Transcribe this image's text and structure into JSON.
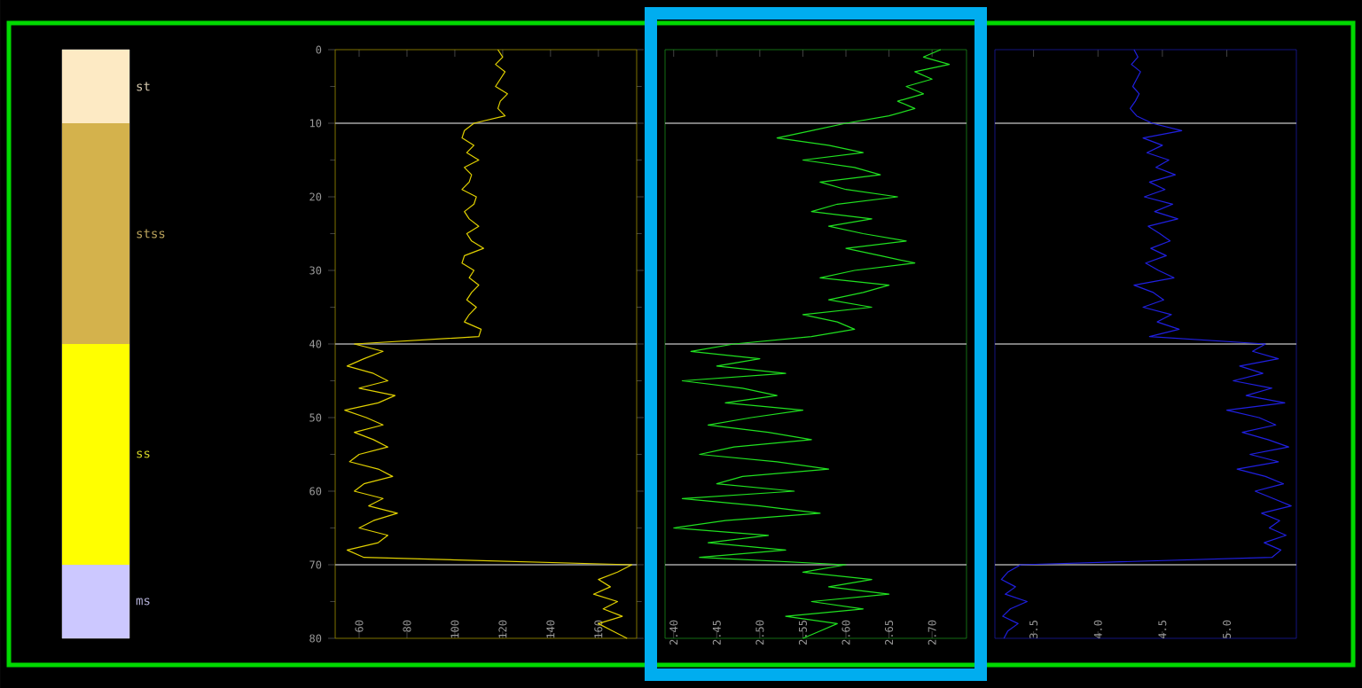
{
  "chart_data": [
    {
      "type": "bar",
      "stacked": true,
      "categories": [
        null
      ],
      "ylim": [
        80,
        0
      ],
      "tick_labels": false,
      "series": [
        {
          "name": "st",
          "color": "#fdeac4",
          "values": [
            10
          ]
        },
        {
          "name": "stss",
          "color": "#d4b24c",
          "values": [
            30
          ]
        },
        {
          "name": "ss",
          "color": "#ffff00",
          "values": [
            30
          ]
        },
        {
          "name": "ms",
          "color": "#ccc8ff",
          "values": [
            10
          ]
        }
      ]
    },
    {
      "type": "line",
      "xlim": [
        50,
        176
      ],
      "xticks": [
        60,
        80,
        100,
        120,
        140,
        160
      ],
      "ylim": [
        80,
        0
      ],
      "yticks": [
        0,
        10,
        20,
        30,
        40,
        50,
        60,
        70,
        80
      ],
      "ref_lines": [
        {
          "axis": "y",
          "value": 10
        },
        {
          "axis": "y",
          "value": 40
        },
        {
          "axis": "y",
          "value": 70
        }
      ],
      "series": [
        {
          "color": "#e0d000",
          "x": [
            118,
            120,
            117,
            121,
            119,
            117,
            122,
            119,
            118,
            121,
            108,
            104,
            103,
            108,
            105,
            110,
            104,
            107,
            106,
            103,
            109,
            108,
            104,
            106,
            110,
            105,
            107,
            112,
            104,
            103,
            108,
            106,
            110,
            107,
            105,
            109,
            106,
            104,
            111,
            110,
            58,
            70,
            62,
            55,
            66,
            72,
            60,
            75,
            68,
            54,
            63,
            70,
            58,
            66,
            72,
            60,
            56,
            68,
            74,
            62,
            58,
            70,
            64,
            76,
            66,
            60,
            72,
            68,
            55,
            62,
            174,
            168,
            160,
            165,
            158,
            168,
            162,
            170,
            160,
            166,
            172
          ],
          "values": [
            0,
            1,
            2,
            3,
            4,
            5,
            6,
            7,
            8,
            9,
            10,
            11,
            12,
            13,
            14,
            15,
            16,
            17,
            18,
            19,
            20,
            21,
            22,
            23,
            24,
            25,
            26,
            27,
            28,
            29,
            30,
            31,
            32,
            33,
            34,
            35,
            36,
            37,
            38,
            39,
            40,
            41,
            42,
            43,
            44,
            45,
            46,
            47,
            48,
            49,
            50,
            51,
            52,
            53,
            54,
            55,
            56,
            57,
            58,
            59,
            60,
            61,
            62,
            63,
            64,
            65,
            66,
            67,
            68,
            69,
            70,
            71,
            72,
            73,
            74,
            75,
            76,
            77,
            78,
            79,
            80
          ]
        }
      ]
    },
    {
      "type": "line",
      "xlim": [
        2.39,
        2.74
      ],
      "xticks": [
        {
          "value": 2.4,
          "label": "2.40"
        },
        2.45,
        {
          "value": 2.5,
          "label": "2.50"
        },
        2.55,
        {
          "value": 2.6,
          "label": "2.60"
        },
        2.65,
        {
          "value": 2.7,
          "label": "2.70"
        }
      ],
      "ylim": [
        80,
        0
      ],
      "tick_labels": "x",
      "ref_lines": [
        {
          "axis": "y",
          "value": 10
        },
        {
          "axis": "y",
          "value": 40
        },
        {
          "axis": "y",
          "value": 70
        }
      ],
      "series": [
        {
          "color": "#20e020",
          "x": [
            2.71,
            2.69,
            2.72,
            2.68,
            2.7,
            2.67,
            2.69,
            2.66,
            2.68,
            2.65,
            2.6,
            2.56,
            2.52,
            2.58,
            2.62,
            2.55,
            2.61,
            2.64,
            2.57,
            2.6,
            2.66,
            2.59,
            2.56,
            2.63,
            2.58,
            2.62,
            2.67,
            2.6,
            2.64,
            2.68,
            2.61,
            2.57,
            2.65,
            2.62,
            2.58,
            2.63,
            2.55,
            2.59,
            2.61,
            2.56,
            2.47,
            2.42,
            2.5,
            2.45,
            2.53,
            2.41,
            2.48,
            2.52,
            2.46,
            2.55,
            2.49,
            2.44,
            2.51,
            2.56,
            2.47,
            2.43,
            2.52,
            2.58,
            2.48,
            2.45,
            2.54,
            2.41,
            2.5,
            2.57,
            2.46,
            2.4,
            2.51,
            2.44,
            2.53,
            2.43,
            2.6,
            2.55,
            2.63,
            2.58,
            2.65,
            2.56,
            2.62,
            2.53,
            2.59,
            2.57,
            2.55
          ],
          "values": [
            0,
            1,
            2,
            3,
            4,
            5,
            6,
            7,
            8,
            9,
            10,
            11,
            12,
            13,
            14,
            15,
            16,
            17,
            18,
            19,
            20,
            21,
            22,
            23,
            24,
            25,
            26,
            27,
            28,
            29,
            30,
            31,
            32,
            33,
            34,
            35,
            36,
            37,
            38,
            39,
            40,
            41,
            42,
            43,
            44,
            45,
            46,
            47,
            48,
            49,
            50,
            51,
            52,
            53,
            54,
            55,
            56,
            57,
            58,
            59,
            60,
            61,
            62,
            63,
            64,
            65,
            66,
            67,
            68,
            69,
            70,
            71,
            72,
            73,
            74,
            75,
            76,
            77,
            78,
            79,
            80
          ]
        }
      ]
    },
    {
      "type": "line",
      "xlim": [
        3.2,
        5.54
      ],
      "xticks": [
        3.5,
        {
          "value": 4.0,
          "label": "4.0"
        },
        4.5,
        {
          "value": 5.0,
          "label": "5.0"
        }
      ],
      "ylim": [
        80,
        0
      ],
      "tick_labels": "x",
      "ref_lines": [
        {
          "axis": "y",
          "value": 10
        },
        {
          "axis": "y",
          "value": 40
        },
        {
          "axis": "y",
          "value": 70
        }
      ],
      "series": [
        {
          "color": "#2020e0",
          "x": [
            4.28,
            4.31,
            4.26,
            4.33,
            4.3,
            4.27,
            4.32,
            4.29,
            4.25,
            4.3,
            4.42,
            4.65,
            4.35,
            4.5,
            4.38,
            4.55,
            4.45,
            4.6,
            4.4,
            4.52,
            4.36,
            4.58,
            4.44,
            4.62,
            4.39,
            4.48,
            4.56,
            4.41,
            4.53,
            4.37,
            4.47,
            4.59,
            4.28,
            4.43,
            4.51,
            4.35,
            4.57,
            4.46,
            4.63,
            4.4,
            5.3,
            5.2,
            5.4,
            5.1,
            5.28,
            5.05,
            5.35,
            5.15,
            5.45,
            5.0,
            5.25,
            5.38,
            5.12,
            5.32,
            5.48,
            5.18,
            5.4,
            5.08,
            5.3,
            5.44,
            5.22,
            5.36,
            5.5,
            5.27,
            5.41,
            5.33,
            5.46,
            5.29,
            5.42,
            5.35,
            3.4,
            3.3,
            3.25,
            3.36,
            3.28,
            3.45,
            3.32,
            3.26,
            3.38,
            3.3,
            3.27
          ],
          "values": [
            0,
            1,
            2,
            3,
            4,
            5,
            6,
            7,
            8,
            9,
            10,
            11,
            12,
            13,
            14,
            15,
            16,
            17,
            18,
            19,
            20,
            21,
            22,
            23,
            24,
            25,
            26,
            27,
            28,
            29,
            30,
            31,
            32,
            33,
            34,
            35,
            36,
            37,
            38,
            39,
            40,
            41,
            42,
            43,
            44,
            45,
            46,
            47,
            48,
            49,
            50,
            51,
            52,
            53,
            54,
            55,
            56,
            57,
            58,
            59,
            60,
            61,
            62,
            63,
            64,
            65,
            66,
            67,
            68,
            69,
            70,
            71,
            72,
            73,
            74,
            75,
            76,
            77,
            78,
            79,
            80
          ]
        }
      ]
    }
  ]
}
